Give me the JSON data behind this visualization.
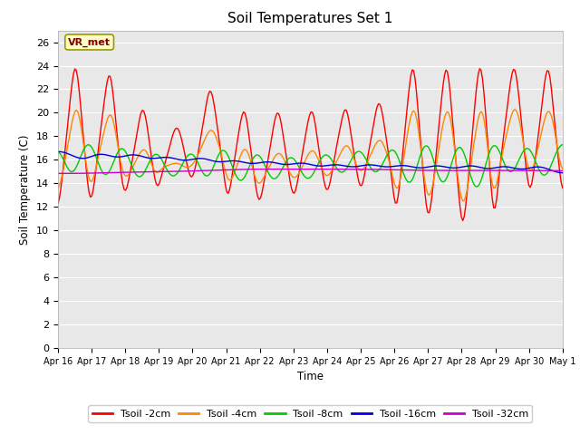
{
  "title": "Soil Temperatures Set 1",
  "xlabel": "Time",
  "ylabel": "Soil Temperature (C)",
  "ylim": [
    0,
    27
  ],
  "yticks": [
    0,
    2,
    4,
    6,
    8,
    10,
    12,
    14,
    16,
    18,
    20,
    22,
    24,
    26
  ],
  "annotation_text": "VR_met",
  "annotation_box_facecolor": "#ffffcc",
  "annotation_box_edgecolor": "#999900",
  "annotation_text_color": "#800000",
  "plot_bg_color": "#e8e8e8",
  "fig_bg_color": "#ffffff",
  "series_colors": {
    "Tsoil -2cm": "#ff0000",
    "Tsoil -4cm": "#ff8800",
    "Tsoil -8cm": "#00cc00",
    "Tsoil -16cm": "#0000dd",
    "Tsoil -32cm": "#cc00cc"
  },
  "grid_color": "#ffffff",
  "days": 15,
  "n_points": 360,
  "tick_labels": [
    "Apr 16",
    "Apr 17",
    "Apr 18",
    "Apr 19",
    "Apr 20",
    "Apr 21",
    "Apr 22",
    "Apr 23",
    "Apr 24",
    "Apr 25",
    "Apr 26",
    "Apr 27",
    "Apr 28",
    "Apr 29",
    "Apr 30",
    "May 1"
  ]
}
